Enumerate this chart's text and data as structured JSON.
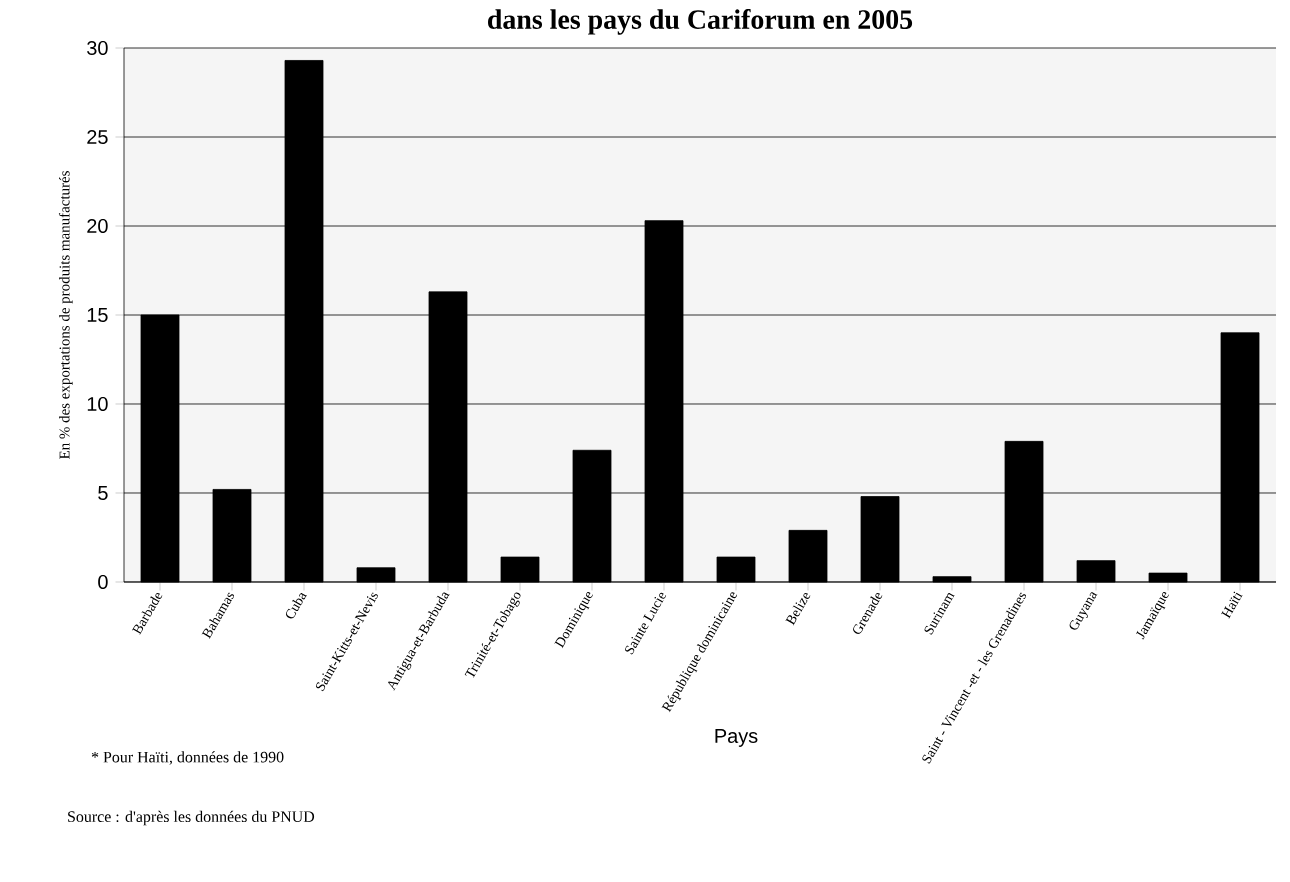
{
  "chart_data": {
    "type": "bar",
    "title": "dans les pays du Cariforum en 2005",
    "xlabel": "Pays",
    "ylabel": "En % des exportations de produits manufacturés",
    "categories": [
      "Barbade",
      "Bahamas",
      "Cuba",
      "Saint-Kitts-et-Nevis",
      "Antigua-et-Barbuda",
      "Trinité-et-Tobago",
      "Dominique",
      "Sainte Lucie",
      "République dominicaine",
      "Belize",
      "Grenade",
      "Surinam",
      "Saint - Vincent -et - les Grenadines",
      "Guyana",
      "Jamaïque",
      "Haïti"
    ],
    "values": [
      15,
      5.2,
      29.3,
      0.8,
      16.3,
      1.4,
      7.4,
      20.3,
      1.4,
      2.9,
      4.8,
      0.3,
      7.9,
      1.2,
      0.5,
      14
    ],
    "color": "#000000",
    "ylim": [
      0,
      30
    ],
    "yticks": [
      0,
      5,
      10,
      15,
      20,
      25,
      30
    ],
    "grid": "y",
    "annotations": [
      "* Pour Haïti, données de 1990",
      "Source : d'après les données du PNUD"
    ]
  }
}
